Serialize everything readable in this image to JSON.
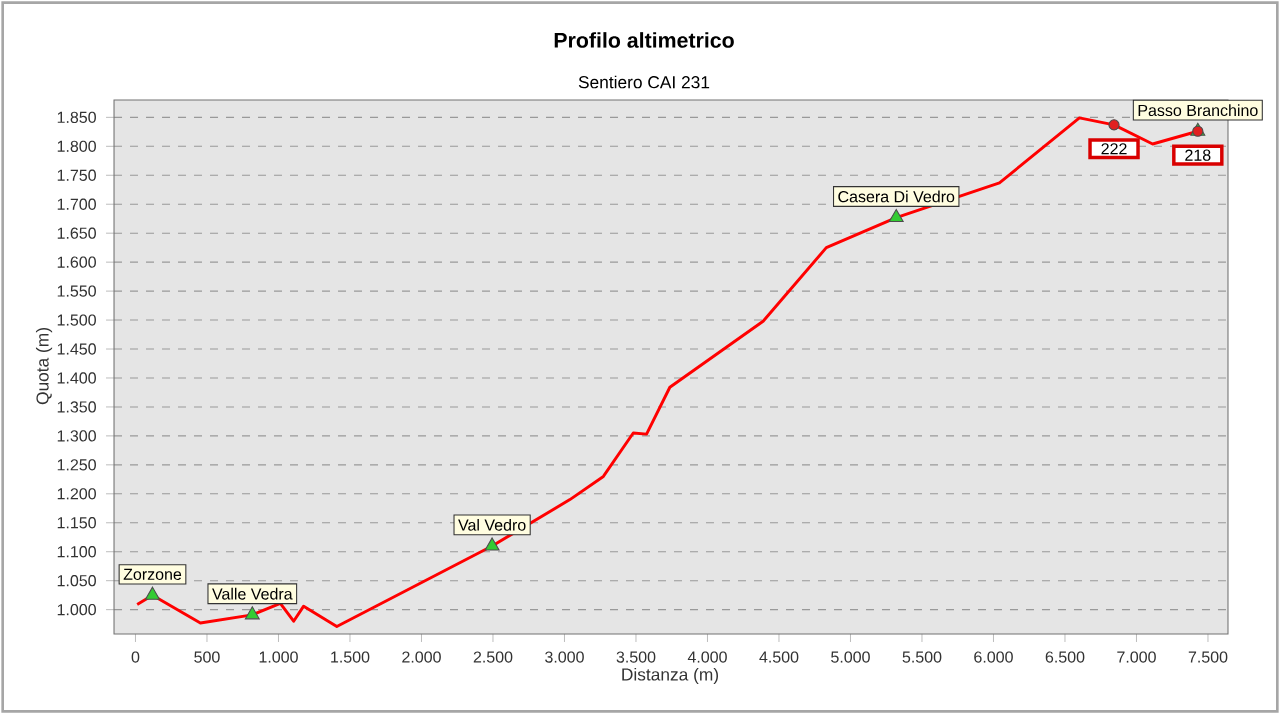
{
  "chart_data": {
    "type": "line",
    "title": "Profilo altimetrico",
    "subtitle": "Sentiero CAI 231",
    "xlabel": "Distanza (m)",
    "ylabel": "Quota (m)",
    "xlim": [
      -150,
      7640
    ],
    "ylim": [
      958,
      1880
    ],
    "grid": "y",
    "xticks": [
      0,
      500,
      {
        "value": 1000,
        "label": "1.000"
      },
      {
        "value": 1500,
        "label": "1.500"
      },
      {
        "value": 2000,
        "label": "2.000"
      },
      {
        "value": 2500,
        "label": "2.500"
      },
      {
        "value": 3000,
        "label": "3.000"
      },
      {
        "value": 3500,
        "label": "3.500"
      },
      {
        "value": 4000,
        "label": "4.000"
      },
      {
        "value": 4500,
        "label": "4.500"
      },
      {
        "value": 5000,
        "label": "5.000"
      },
      {
        "value": 5500,
        "label": "5.500"
      },
      {
        "value": 6000,
        "label": "6.000"
      },
      {
        "value": 6500,
        "label": "6.500"
      },
      {
        "value": 7000,
        "label": "7.000"
      },
      {
        "value": 7500,
        "label": "7.500"
      }
    ],
    "yticks": [
      {
        "value": 1000,
        "label": "1.000"
      },
      {
        "value": 1050,
        "label": "1.050"
      },
      {
        "value": 1100,
        "label": "1.100"
      },
      {
        "value": 1150,
        "label": "1.150"
      },
      {
        "value": 1200,
        "label": "1.200"
      },
      {
        "value": 1250,
        "label": "1.250"
      },
      {
        "value": 1300,
        "label": "1.300"
      },
      {
        "value": 1350,
        "label": "1.350"
      },
      {
        "value": 1400,
        "label": "1.400"
      },
      {
        "value": 1450,
        "label": "1.450"
      },
      {
        "value": 1500,
        "label": "1.500"
      },
      {
        "value": 1550,
        "label": "1.550"
      },
      {
        "value": 1600,
        "label": "1.600"
      },
      {
        "value": 1650,
        "label": "1.650"
      },
      {
        "value": 1700,
        "label": "1.700"
      },
      {
        "value": 1750,
        "label": "1.750"
      },
      {
        "value": 1800,
        "label": "1.800"
      },
      {
        "value": 1850,
        "label": "1.850"
      }
    ],
    "series": [
      {
        "type": "line",
        "color": "#ff0000",
        "marker": "none",
        "x": [
          12,
          119,
          454,
          817,
          1013,
          1106,
          1176,
          1408,
          2494,
          3038,
          3272,
          3481,
          3574,
          3737,
          4389,
          4831,
          5320,
          6042,
          6601,
          6843,
          7113,
          7429
        ],
        "values": [
          1009,
          1025,
          977,
          991,
          1011,
          980,
          1006,
          971,
          1110,
          1190,
          1230,
          1305,
          1303,
          1384,
          1498,
          1625,
          1677,
          1737,
          1849,
          1837,
          1804,
          1826
        ]
      },
      {
        "type": "scatter",
        "color": "#33cc33",
        "marker": "triangle",
        "x": [
          119,
          817,
          2494,
          5320,
          7429
        ],
        "values": [
          1025,
          991,
          1110,
          1677,
          1826
        ]
      },
      {
        "type": "scatter",
        "color": "#e02020",
        "marker": "circle",
        "x": [
          6843,
          7429
        ],
        "values": [
          1837,
          1826
        ]
      }
    ],
    "annotations": [
      {
        "text": "Zorzone",
        "x": 119,
        "y": 1025
      },
      {
        "text": "Valle Vedra",
        "x": 817,
        "y": 991
      },
      {
        "text": "Val Vedro",
        "x": 2494,
        "y": 1110
      },
      {
        "text": "Casera Di Vedro",
        "x": 5320,
        "y": 1677
      },
      {
        "text": "Passo Branchino",
        "x": 7429,
        "y": 1826
      },
      {
        "text": "222",
        "x": 6843,
        "y": 1837
      },
      {
        "text": "218",
        "x": 7429,
        "y": 1826
      }
    ]
  }
}
